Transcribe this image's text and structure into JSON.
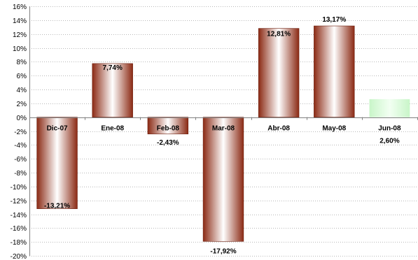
{
  "chart_data": {
    "type": "bar",
    "categories": [
      "Dic-07",
      "Ene-08",
      "Feb-08",
      "Mar-08",
      "Abr-08",
      "May-08",
      "Jun-08"
    ],
    "values": [
      -13.21,
      7.74,
      -2.43,
      -17.92,
      12.81,
      13.17,
      2.6
    ],
    "data_labels": [
      "-13,21%",
      "7,74%",
      "-2,43%",
      "-17,92%",
      "12,81%",
      "13,17%",
      "2,60%"
    ],
    "ylim": [
      -20,
      16
    ],
    "y_ticks": [
      16,
      14,
      12,
      10,
      8,
      6,
      4,
      2,
      0,
      -2,
      -4,
      -6,
      -8,
      -10,
      -12,
      -14,
      -16,
      -18,
      -20
    ],
    "y_tick_labels": [
      "16%",
      "14%",
      "12%",
      "10%",
      "8%",
      "6%",
      "4%",
      "2%",
      "0%",
      "-2%",
      "-4%",
      "-6%",
      "-8%",
      "-10%",
      "-12%",
      "-14%",
      "-16%",
      "-18%",
      "-20%"
    ],
    "grid": true,
    "title": "",
    "xlabel": "",
    "ylabel": "",
    "colors": {
      "bar_dark": "#8b2a14",
      "bar_light": "#ffffff",
      "highlight_bar": "#c8f5c8",
      "grid": "#b8b8b8",
      "axis": "#808080"
    },
    "highlight_index": 6
  }
}
